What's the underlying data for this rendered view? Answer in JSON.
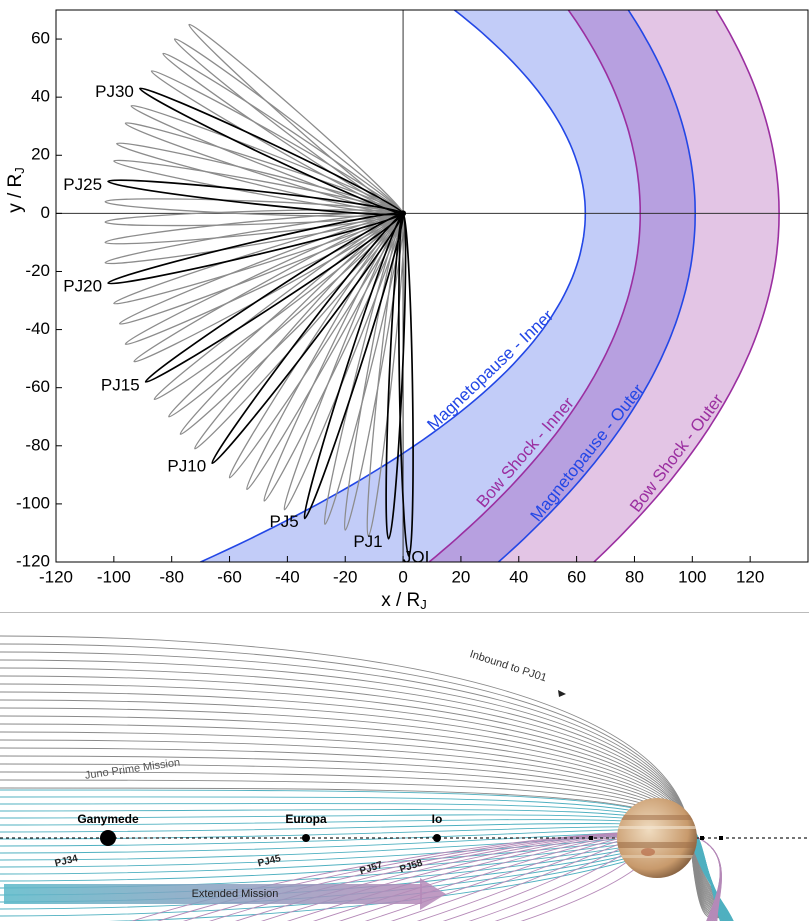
{
  "chart_data": {
    "type": "orbit",
    "xlabel": "x / R",
    "xlabel_sub": "J",
    "ylabel": "y / R",
    "ylabel_sub": "J",
    "xlim": [
      -120,
      140
    ],
    "ylim": [
      -120,
      70
    ],
    "xticks": [
      -120,
      -100,
      -80,
      -60,
      -40,
      -20,
      0,
      20,
      40,
      60,
      80,
      100,
      120
    ],
    "yticks": [
      -120,
      -100,
      -80,
      -60,
      -40,
      -20,
      0,
      20,
      40,
      60
    ],
    "orbits": {
      "color": "#8c8c8c",
      "highlight_color": "#000000",
      "labels": [
        "JOI",
        "PJ1",
        null,
        null,
        null,
        "PJ5",
        null,
        null,
        null,
        null,
        "PJ10",
        null,
        null,
        null,
        null,
        "PJ15",
        null,
        null,
        null,
        null,
        "PJ20",
        null,
        null,
        null,
        null,
        "PJ25",
        null,
        null,
        null,
        null,
        "PJ30",
        null,
        null,
        null,
        null
      ],
      "x": [
        2,
        -5,
        -12,
        -20,
        -27,
        -34,
        -41,
        -48,
        -54,
        -60,
        -66,
        -72,
        -77,
        -81,
        -86,
        -89,
        -93,
        -96,
        -98,
        -100,
        -102,
        -103,
        -103,
        -103,
        -103,
        -102,
        -100,
        -99,
        -96,
        -94,
        -91,
        -87,
        -83,
        -79,
        -74
      ],
      "y": [
        -118,
        -112,
        -111,
        -109,
        -107,
        -105,
        -102,
        -99,
        -95,
        -91,
        -86,
        -81,
        -76,
        -70,
        -64,
        -58,
        -51,
        -45,
        -38,
        -31,
        -24,
        -17,
        -10,
        -3,
        4,
        11,
        18,
        24,
        31,
        37,
        43,
        49,
        55,
        60,
        65
      ]
    },
    "boundaries": [
      {
        "name": "Magnetopause - Inner",
        "color": "#2347e6",
        "x": [
          -70,
          63
        ],
        "y": [
          -120,
          0
        ]
      },
      {
        "name": "Bow Shock - Inner",
        "color": "#9b2fa0",
        "x": [
          9,
          82
        ],
        "y": [
          -120,
          0
        ]
      },
      {
        "name": "Magnetopause - Outer",
        "color": "#2347e6",
        "x": [
          33,
          101
        ],
        "y": [
          -120,
          0
        ]
      },
      {
        "name": "Bow Shock - Outer",
        "color": "#9b2fa0",
        "x": [
          66,
          130
        ],
        "y": [
          -120,
          0
        ]
      }
    ]
  },
  "diagram": {
    "inbound": "Inbound to PJ01",
    "prime": "Juno Prime Mission",
    "extended": "Extended Mission",
    "moons": [
      "Ganymede",
      "Europa",
      "Io"
    ],
    "perijoves": [
      "PJ34",
      "PJ45",
      "PJ57",
      "PJ58"
    ]
  }
}
